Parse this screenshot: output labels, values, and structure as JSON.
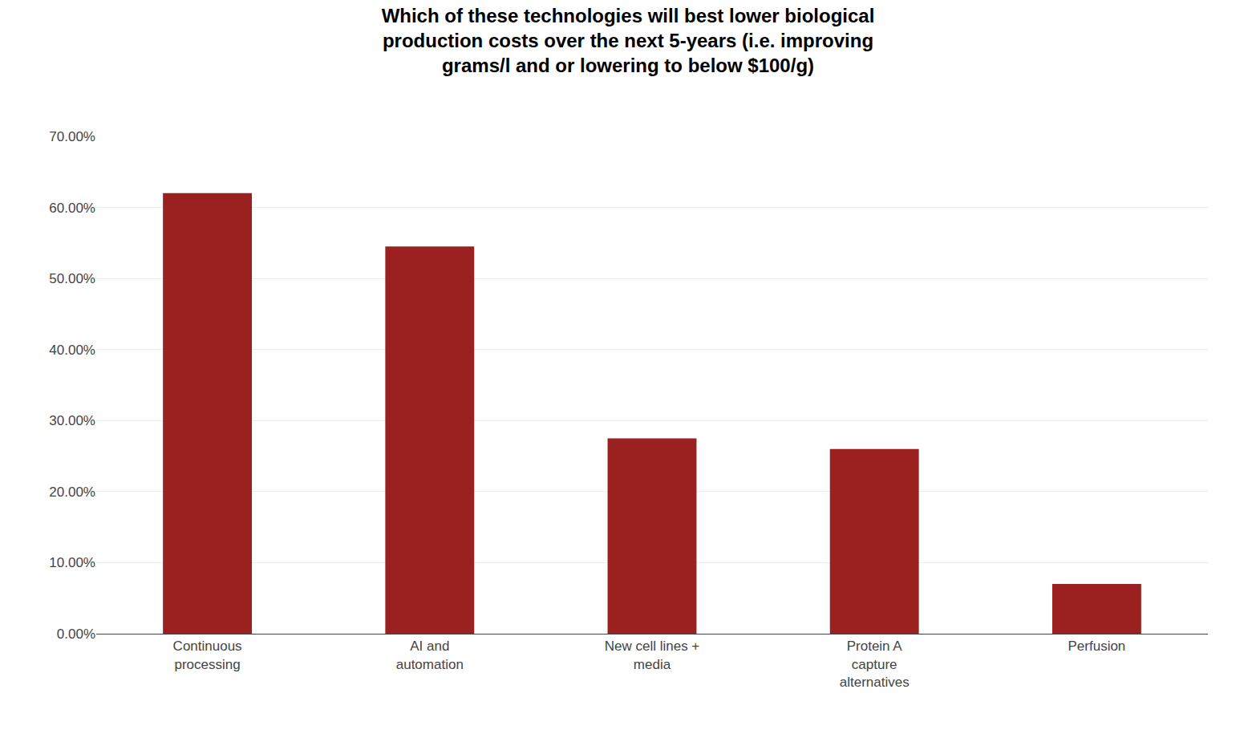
{
  "chart_data": {
    "type": "bar",
    "title": "Which of these technologies will best lower biological\nproduction costs over the next 5-years (i.e. improving\ngrams/l and or lowering to below $100/g)",
    "categories": [
      "Continuous\nprocessing",
      "AI and\nautomation",
      "New cell lines +\nmedia",
      "Protein A\ncapture\nalternatives",
      "Perfusion"
    ],
    "values": [
      0.62,
      0.545,
      0.275,
      0.26,
      0.07
    ],
    "color": "#9B2020",
    "ylim": [
      0,
      0.7
    ],
    "yticks": [
      {
        "value": 0.0,
        "label": "0.00%"
      },
      {
        "value": 0.1,
        "label": "10.00%"
      },
      {
        "value": 0.2,
        "label": "20.00%"
      },
      {
        "value": 0.3,
        "label": "30.00%"
      },
      {
        "value": 0.4,
        "label": "40.00%"
      },
      {
        "value": 0.5,
        "label": "50.00%"
      },
      {
        "value": 0.6,
        "label": "60.00%"
      },
      {
        "value": 0.7,
        "label": "70.00%"
      }
    ],
    "grid": true
  }
}
